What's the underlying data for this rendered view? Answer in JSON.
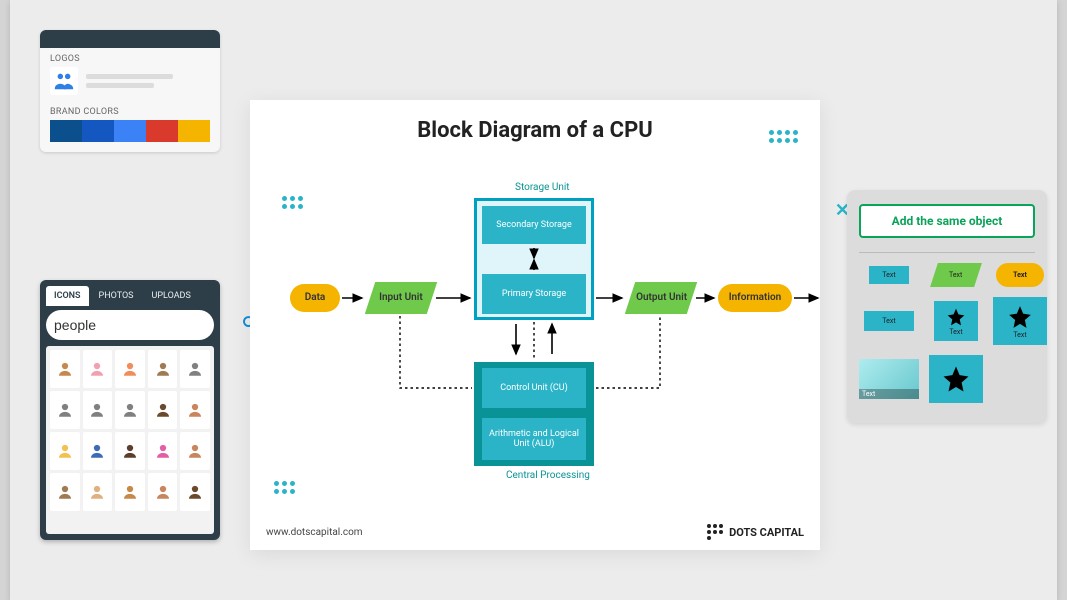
{
  "brand_panel": {
    "logos_title": "LOGOS",
    "colors_title": "BRAND COLORS",
    "logo_icon_color": "#2e80e6",
    "colors": [
      "#0b4f8c",
      "#1557c0",
      "#3b82f6",
      "#d93a2b",
      "#f4b400"
    ]
  },
  "icons_panel": {
    "tabs": {
      "icons": "ICONS",
      "photos": "PHOTOS",
      "uploads": "UPLOADS"
    },
    "active_tab": "icons",
    "search_value": "people",
    "search_icon_color": "#0d8bd9",
    "avatar_colors": [
      "#c7894a",
      "#f2a0b0",
      "#f08d5a",
      "#a07a52",
      "#808080",
      "#808080",
      "#808080",
      "#808080",
      "#6b4a2c",
      "#c9855c",
      "#f2c14e",
      "#3b6cb5",
      "#5b3f2c",
      "#e35fa3",
      "#c9855c",
      "#a07a52",
      "#e0b080",
      "#c7894a",
      "#c9855c",
      "#6b4a2c"
    ]
  },
  "canvas": {
    "title": "Block Diagram of a CPU",
    "labels": {
      "storage_unit": "Storage Unit",
      "central_processing": "Central Processing"
    },
    "nodes": {
      "data": "Data",
      "input_unit": "Input Unit",
      "secondary_storage": "Secondary Storage",
      "primary_storage": "Primary Storage",
      "output_unit": "Output Unit",
      "information": "Information",
      "control_unit": "Control Unit (CU)",
      "alu": "Arithmetic and Logical Unit (ALU)"
    },
    "colors": {
      "rounded_bg": "#f4b400",
      "para_bg": "#6fc94b",
      "storage_border": "#00a0c0",
      "storage_inner": "#2bb4c8",
      "cpu_bg": "#0a9396",
      "teal": "#2bb4c8",
      "arrow": "#000000",
      "dotted": "#000000"
    },
    "footer_url": "www.dotscapital.com",
    "footer_brand": "DOTS CAPITAL"
  },
  "right_panel": {
    "button_label": "Add the same object",
    "button_border": "#0aa35a",
    "shape_text": "Text"
  }
}
